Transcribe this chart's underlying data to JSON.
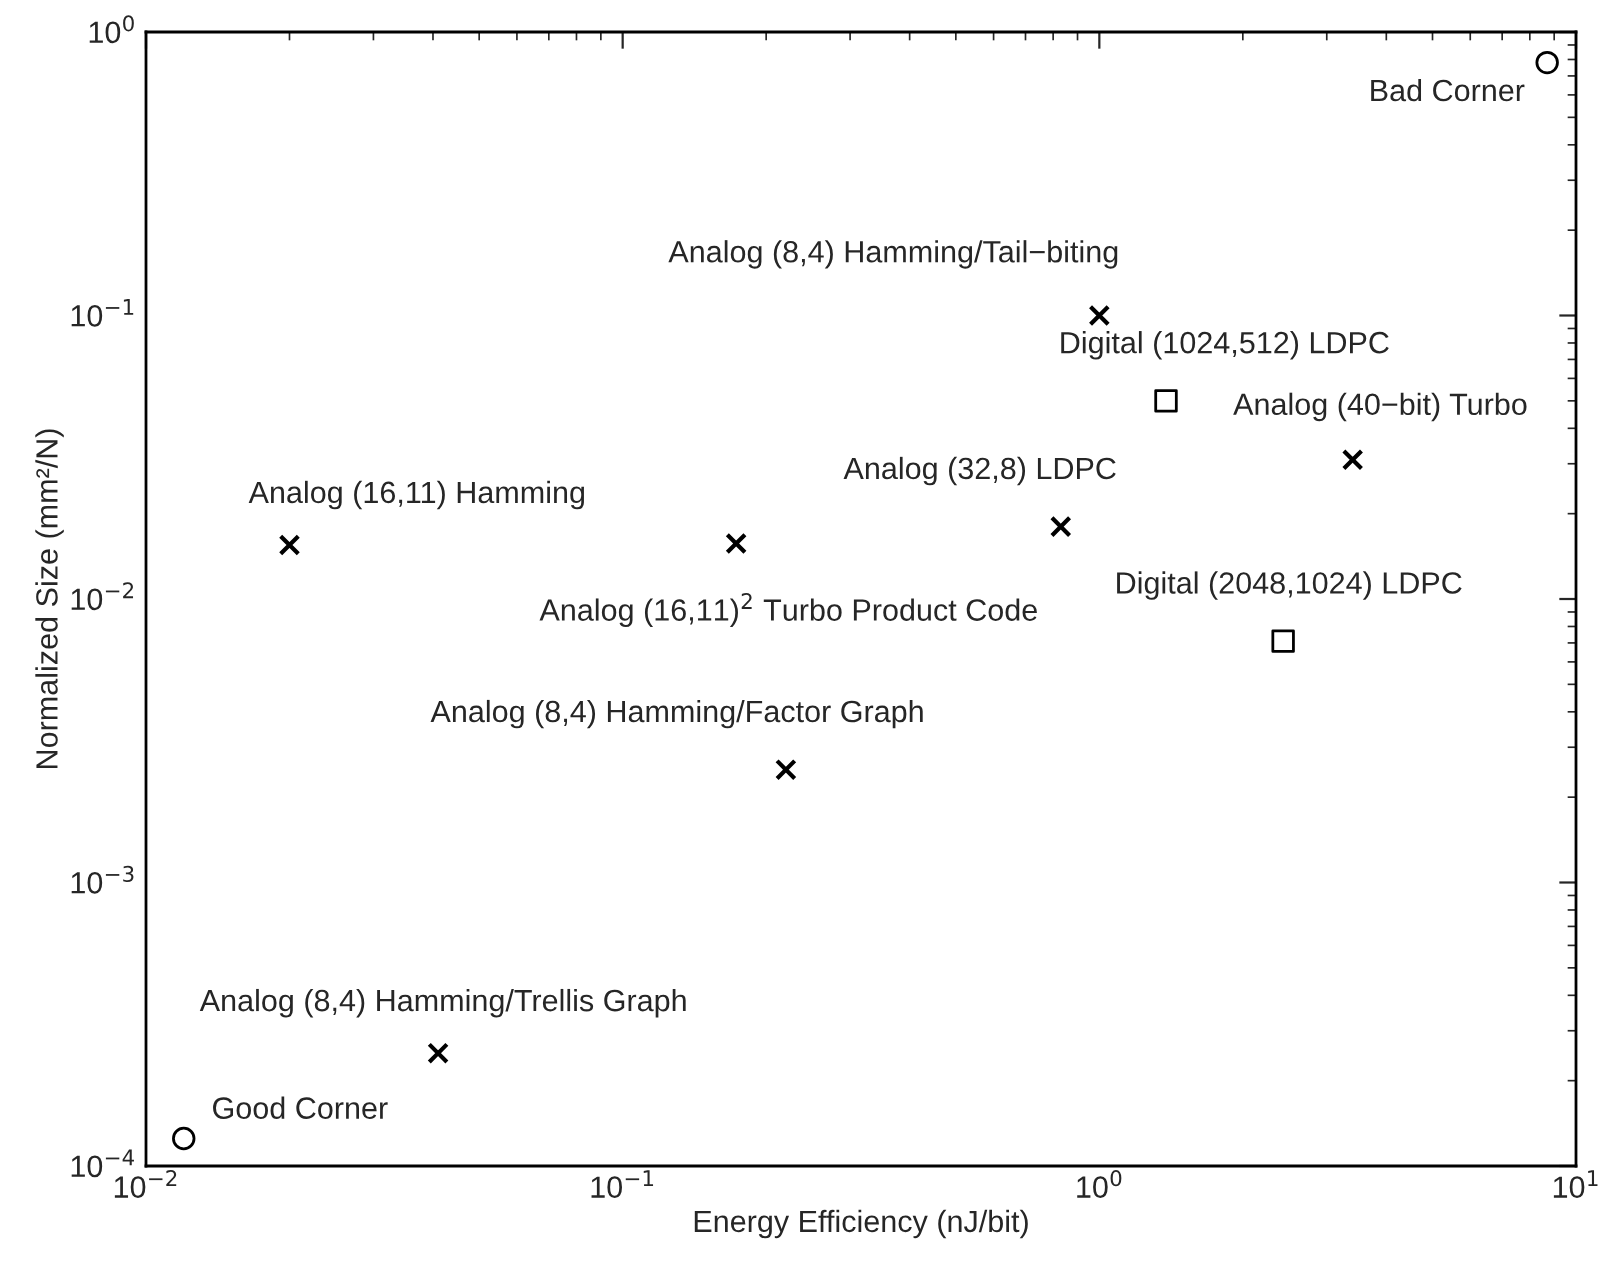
{
  "chart_data": {
    "type": "scatter",
    "xlabel": "Energy Efficiency (nJ/bit)",
    "ylabel": "Normalized Size (mm²/N)",
    "log": "xy",
    "grid": false,
    "legend": false,
    "xlim": [
      0.01,
      10
    ],
    "ylim": [
      0.0001,
      1
    ],
    "xticks": [
      {
        "value": 0.01,
        "label": "10$^{−2}$"
      },
      {
        "value": 0.1,
        "label": "10$^{−1}$"
      },
      {
        "value": 1,
        "label": "10$^{0}$"
      },
      {
        "value": 10,
        "label": "10$^{1}$"
      }
    ],
    "yticks": [
      {
        "value": 0.0001,
        "label": "10$^{−4}$"
      },
      {
        "value": 0.001,
        "label": "10$^{−3}$"
      },
      {
        "value": 0.01,
        "label": "10$^{−2}$"
      },
      {
        "value": 0.1,
        "label": "10$^{−1}$"
      },
      {
        "value": 1,
        "label": "10$^{0}$"
      }
    ],
    "series": [
      {
        "color": "#000000",
        "marker": "circle",
        "x": [
          0.012,
          8.7
        ],
        "values": [
          0.000125,
          0.78
        ]
      },
      {
        "color": "#000000",
        "marker": "cross",
        "x": [
          0.02,
          0.173,
          0.22,
          0.041,
          1.0,
          3.4,
          0.83
        ],
        "values": [
          0.0155,
          0.0157,
          0.0025,
          0.00025,
          0.1,
          0.031,
          0.018
        ]
      },
      {
        "color": "#000000",
        "marker": "square",
        "x": [
          1.38,
          2.43
        ],
        "values": [
          0.05,
          0.0071
        ]
      }
    ],
    "annotations": [
      {
        "text": "Good Corner",
        "x": 0.012,
        "y": 0.000125
      },
      {
        "text": "Bad Corner",
        "x": 8.7,
        "y": 0.78
      },
      {
        "text": "Analog (16,11) Hamming",
        "x": 0.02,
        "y": 0.0155
      },
      {
        "text": "Analog (16,11)$^{2}$ Turbo Product Code",
        "x": 0.173,
        "y": 0.0157
      },
      {
        "text": "Analog (8,4) Hamming/Factor Graph",
        "x": 0.22,
        "y": 0.0025
      },
      {
        "text": "Analog (8,4) Hamming/Trellis Graph",
        "x": 0.041,
        "y": 0.00025
      },
      {
        "text": "Analog (8,4) Hamming/Tail−biting",
        "x": 1.0,
        "y": 0.1
      },
      {
        "text": "Analog (40−bit) Turbo",
        "x": 3.4,
        "y": 0.031
      },
      {
        "text": "Analog (32,8) LDPC",
        "x": 0.83,
        "y": 0.018
      },
      {
        "text": "Digital (1024,512) LDPC",
        "x": 1.38,
        "y": 0.05
      },
      {
        "text": "Digital (2048,1024) LDPC",
        "x": 2.43,
        "y": 0.0071
      }
    ]
  }
}
